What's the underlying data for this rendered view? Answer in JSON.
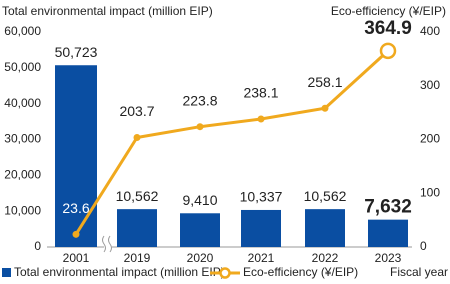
{
  "chart_data": {
    "type": "bar-line",
    "y_label": "Total environmental impact (million EIP)",
    "y2_label": "Eco-efficiency (¥/EIP)",
    "x_label": "Fiscal year",
    "categories": [
      "2001",
      "2019",
      "2020",
      "2021",
      "2022",
      "2023"
    ],
    "series": [
      {
        "name": "Total environmental impact (million EIP)",
        "type": "bar",
        "color": "#0a4ea2",
        "values": [
          50723,
          10562,
          9410,
          10337,
          10562,
          7632
        ],
        "value_labels": [
          "50,723",
          "10,562",
          "9,410",
          "10,337",
          "10,562",
          "7,632"
        ]
      },
      {
        "name": "Eco-efficiency (¥/EIP)",
        "type": "line",
        "axis": "y2",
        "color": "#f0a91e",
        "values": [
          23.6,
          203.7,
          223.8,
          238.1,
          258.1,
          364.9
        ]
      }
    ],
    "ylim": [
      0,
      60000
    ],
    "yticks": [
      0,
      {
        "value": 10000,
        "label": "10,000"
      },
      {
        "value": 20000,
        "label": "20,000"
      },
      {
        "value": 30000,
        "label": "30,000"
      },
      {
        "value": 40000,
        "label": "40,000"
      },
      {
        "value": 50000,
        "label": "50,000"
      },
      {
        "value": 60000,
        "label": "60,000"
      }
    ],
    "y2lim": [
      0,
      400
    ],
    "y2ticks": [
      0,
      100,
      200,
      300,
      400
    ],
    "legend": "bottom"
  }
}
